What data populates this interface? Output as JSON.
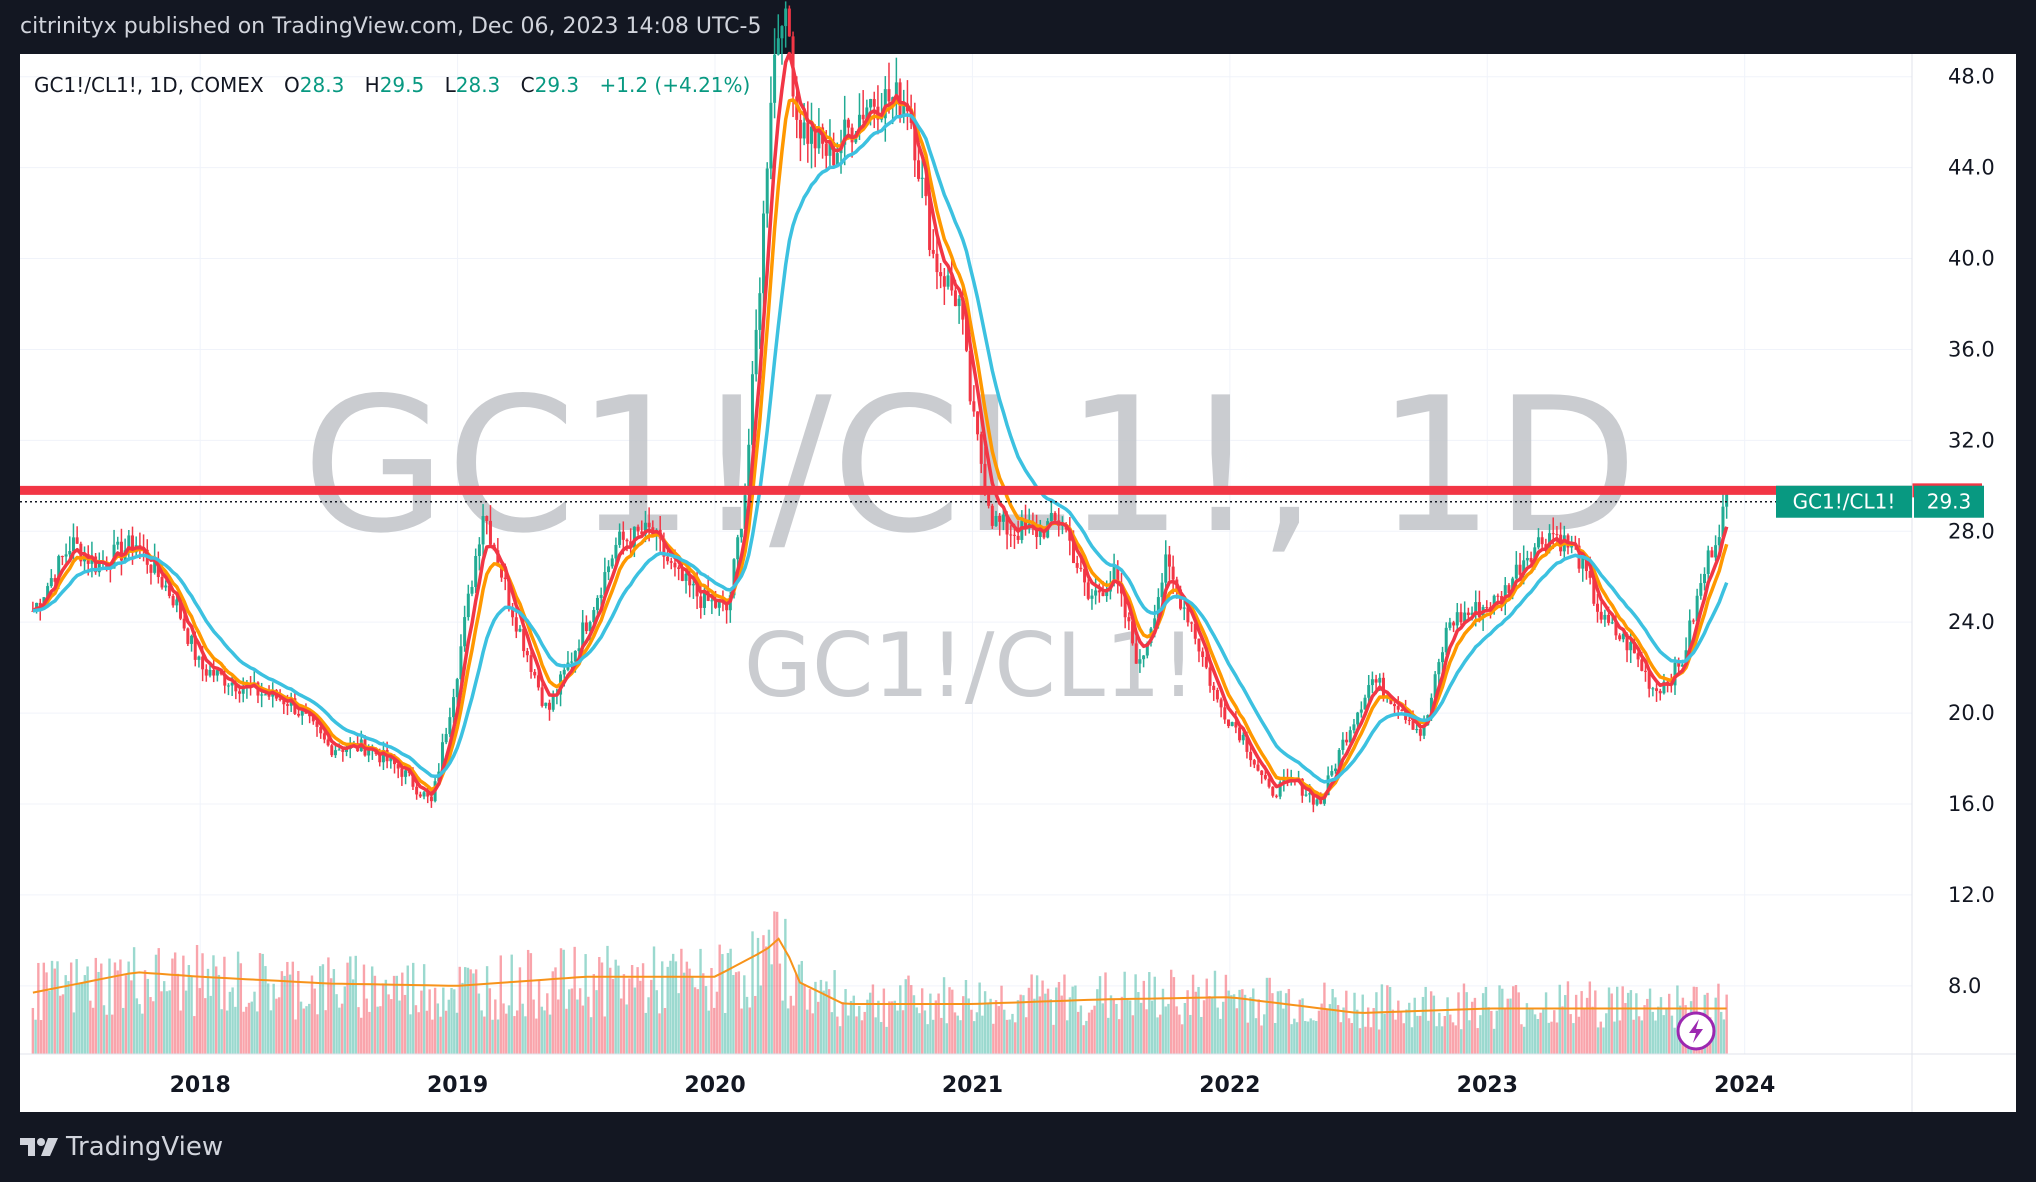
{
  "header": {
    "published": "citrinityx published on TradingView.com, Dec 06, 2023 14:08 UTC-5"
  },
  "footer": {
    "brand": "TradingView"
  },
  "legend": {
    "symbol": "GC1!/CL1!, 1D, COMEX",
    "o_label": "O",
    "o_value": "28.3",
    "h_label": "H",
    "h_value": "29.5",
    "l_label": "L",
    "l_value": "28.3",
    "c_label": "C",
    "c_value": "29.3",
    "change": "+1.2 (+4.21%)"
  },
  "watermark": {
    "big": "GC1!/CL1!, 1D",
    "small": "GC1!/CL1!"
  },
  "price_label": {
    "name": "GC1!/CL1!",
    "value": "29.3"
  },
  "colors": {
    "up": "#22ab94",
    "down": "#f23645",
    "ema_fast": "#f23645",
    "ema_mid": "#ff9800",
    "ema_slow": "#3cc1e0",
    "level_line": "#f23645",
    "label_bg": "#089981",
    "volume_ma": "#f7931a"
  },
  "chart_data": {
    "type": "line",
    "title": "GC1!/CL1!, 1D, COMEX",
    "ylim": [
      5.0,
      49.0
    ],
    "y_ticks": [
      48.0,
      44.0,
      40.0,
      36.0,
      32.0,
      28.0,
      24.0,
      20.0,
      16.0,
      12.0,
      8.0
    ],
    "y_tick_labels": [
      "48.0",
      "44.0",
      "40.0",
      "36.0",
      "32.0",
      "28.0",
      "24.0",
      "20.0",
      "16.0",
      "12.0",
      "8.0"
    ],
    "x_ticks": [
      2018,
      2019,
      2020,
      2021,
      2022,
      2023,
      2024
    ],
    "x_tick_labels": [
      "2018",
      "2019",
      "2020",
      "2021",
      "2022",
      "2023",
      "2024"
    ],
    "horizontal_level": 29.8,
    "last_value": 29.3,
    "grid": true,
    "series": [
      {
        "kind": "price",
        "x": [
          2017.35,
          2017.5,
          2017.6,
          2017.75,
          2017.9,
          2018.0,
          2018.2,
          2018.35,
          2018.5,
          2018.65,
          2018.78,
          2018.9,
          2019.0,
          2019.1,
          2019.2,
          2019.35,
          2019.5,
          2019.62,
          2019.75,
          2019.85,
          2019.95,
          2020.05,
          2020.12,
          2020.18,
          2020.22,
          2020.27,
          2020.32,
          2020.45,
          2020.6,
          2020.75,
          2020.85,
          2020.95,
          2021.0,
          2021.08,
          2021.15,
          2021.25,
          2021.35,
          2021.45,
          2021.55,
          2021.65,
          2021.75,
          2021.85,
          2021.95,
          2022.05,
          2022.15,
          2022.25,
          2022.35,
          2022.45,
          2022.55,
          2022.65,
          2022.75,
          2022.85,
          2022.95,
          2023.05,
          2023.15,
          2023.25,
          2023.35,
          2023.45,
          2023.55,
          2023.65,
          2023.75,
          2023.85,
          2023.93
        ],
        "values": [
          24.5,
          27.5,
          26.5,
          27.5,
          25.0,
          22.0,
          21.0,
          20.5,
          18.5,
          18.5,
          17.5,
          16.0,
          22.0,
          29.0,
          25.0,
          20.0,
          24.0,
          27.5,
          28.0,
          26.0,
          25.0,
          24.5,
          30.0,
          40.0,
          48.0,
          52.0,
          46.0,
          44.5,
          47.0,
          47.0,
          40.0,
          38.0,
          33.0,
          28.5,
          28.0,
          28.0,
          28.5,
          25.0,
          26.0,
          22.0,
          26.5,
          24.0,
          20.5,
          19.0,
          16.5,
          17.0,
          16.0,
          19.0,
          21.5,
          20.5,
          19.0,
          24.0,
          24.5,
          25.0,
          27.0,
          28.0,
          27.0,
          24.0,
          23.0,
          21.0,
          22.0,
          26.5,
          29.3
        ]
      },
      {
        "kind": "volume",
        "x": [
          2017.35,
          2017.75,
          2018.0,
          2018.5,
          2019.0,
          2019.5,
          2020.0,
          2020.2,
          2020.26,
          2020.32,
          2020.5,
          2021.0,
          2021.5,
          2022.0,
          2022.5,
          2023.0,
          2023.5,
          2023.93
        ],
        "values": [
          7.7,
          8.6,
          8.4,
          8.1,
          8.0,
          8.4,
          8.4,
          9.6,
          10.2,
          8.2,
          7.2,
          7.2,
          7.4,
          7.5,
          6.8,
          7.0,
          7.0,
          7.0
        ]
      }
    ]
  }
}
